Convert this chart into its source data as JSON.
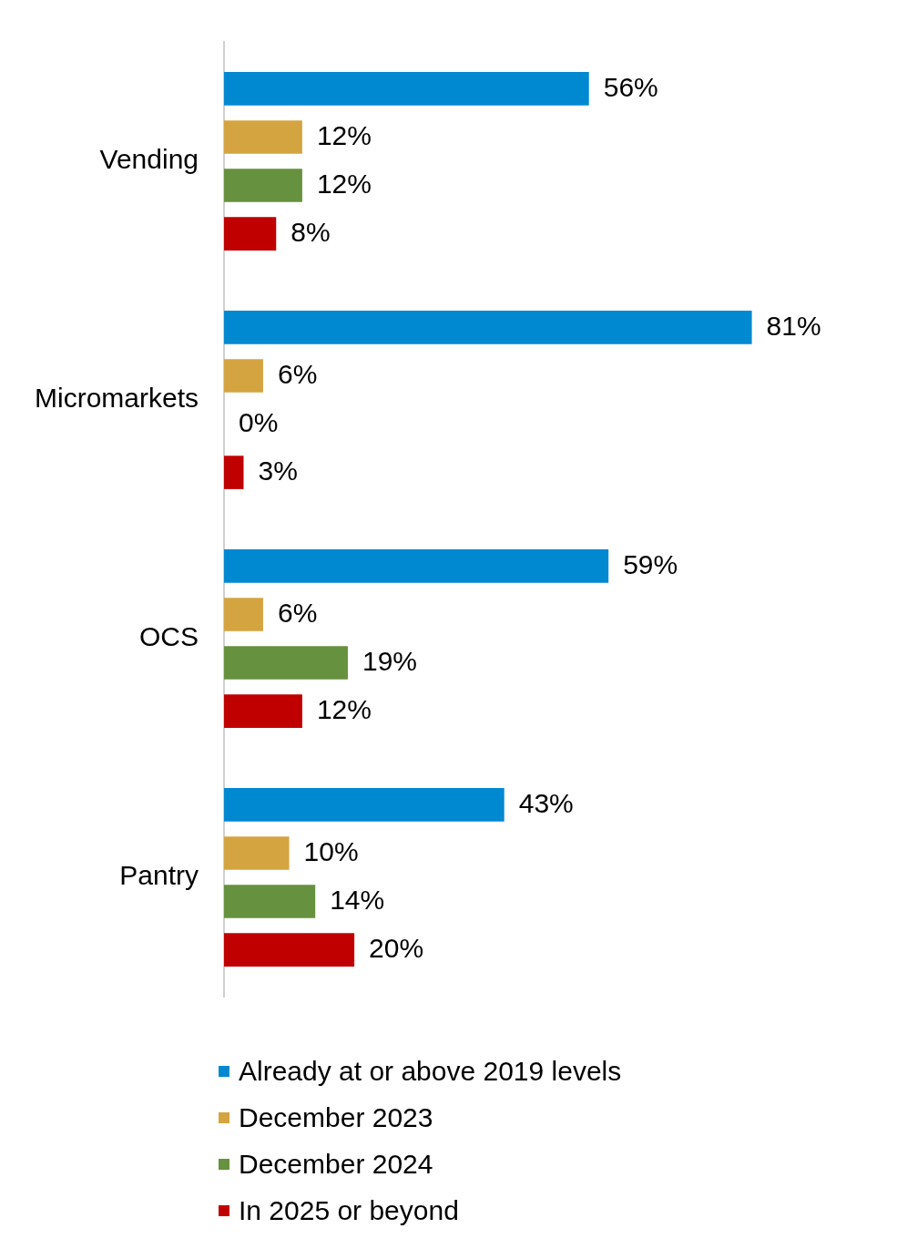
{
  "chart_data": {
    "type": "bar",
    "orientation": "horizontal",
    "legend": "bottom",
    "categories": [
      "Vending",
      "Micromarkets",
      "OCS",
      "Pantry"
    ],
    "series": [
      {
        "name": "Already at or above 2019 levels",
        "color": "#0088d1",
        "values": [
          56,
          81,
          59,
          43
        ],
        "value_labels": [
          "56%",
          "81%",
          "59%",
          "43%"
        ]
      },
      {
        "name": "December 2023",
        "color": "#d4a441",
        "values": [
          12,
          6,
          6,
          10
        ],
        "value_labels": [
          "12%",
          "6%",
          "6%",
          "10%"
        ]
      },
      {
        "name": "December 2024",
        "color": "#66913e",
        "values": [
          12,
          0,
          19,
          14
        ],
        "value_labels": [
          "12%",
          "0%",
          "19%",
          "14%"
        ]
      },
      {
        "name": "In 2025 or beyond",
        "color": "#c00000",
        "values": [
          8,
          3,
          12,
          20
        ],
        "value_labels": [
          "8%",
          "3%",
          "12%",
          "20%"
        ]
      }
    ]
  }
}
